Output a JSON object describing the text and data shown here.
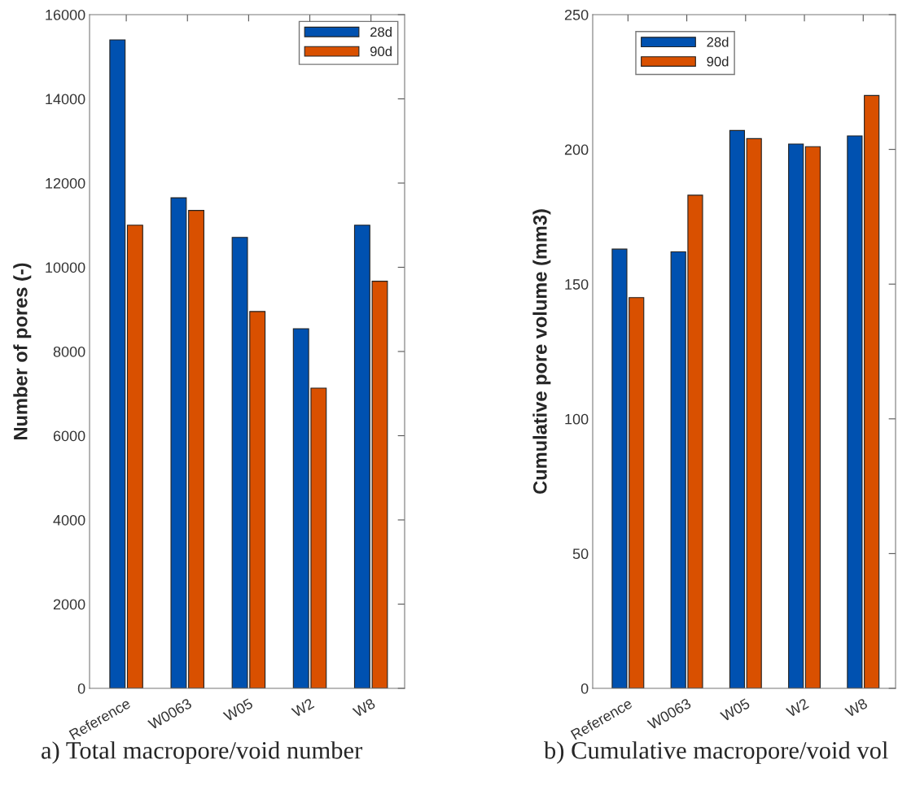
{
  "chart_data": [
    {
      "type": "bar",
      "ylabel": "Number of pores (-)",
      "categories": [
        "Reference",
        "W0063",
        "W05",
        "W2",
        "W8"
      ],
      "series": [
        {
          "name": "28d",
          "color": "#0051b0",
          "values": [
            15400,
            11650,
            10710,
            8540,
            11000
          ]
        },
        {
          "name": "90d",
          "color": "#d95000",
          "values": [
            11000,
            11350,
            8950,
            7130,
            9670
          ]
        }
      ],
      "ylim": [
        0,
        16000
      ],
      "yticks": [
        0,
        2000,
        4000,
        6000,
        8000,
        10000,
        12000,
        14000,
        16000
      ],
      "grid": false,
      "legend": "top right",
      "annotations": [
        "a) Total macropore/void number"
      ]
    },
    {
      "type": "bar",
      "ylabel": "Cumulative pore volume (mm3)",
      "categories": [
        "Reference",
        "W0063",
        "W05",
        "W2",
        "W8"
      ],
      "series": [
        {
          "name": "28d",
          "color": "#0051b0",
          "values": [
            163,
            162,
            207,
            202,
            205
          ]
        },
        {
          "name": "90d",
          "color": "#d95000",
          "values": [
            145,
            183,
            204,
            201,
            220
          ]
        }
      ],
      "ylim": [
        0,
        250
      ],
      "yticks": [
        0,
        50,
        100,
        150,
        200,
        250
      ],
      "grid": false,
      "legend": "top left",
      "annotations": [
        "b) Cumulative macropore/void vol"
      ]
    }
  ]
}
